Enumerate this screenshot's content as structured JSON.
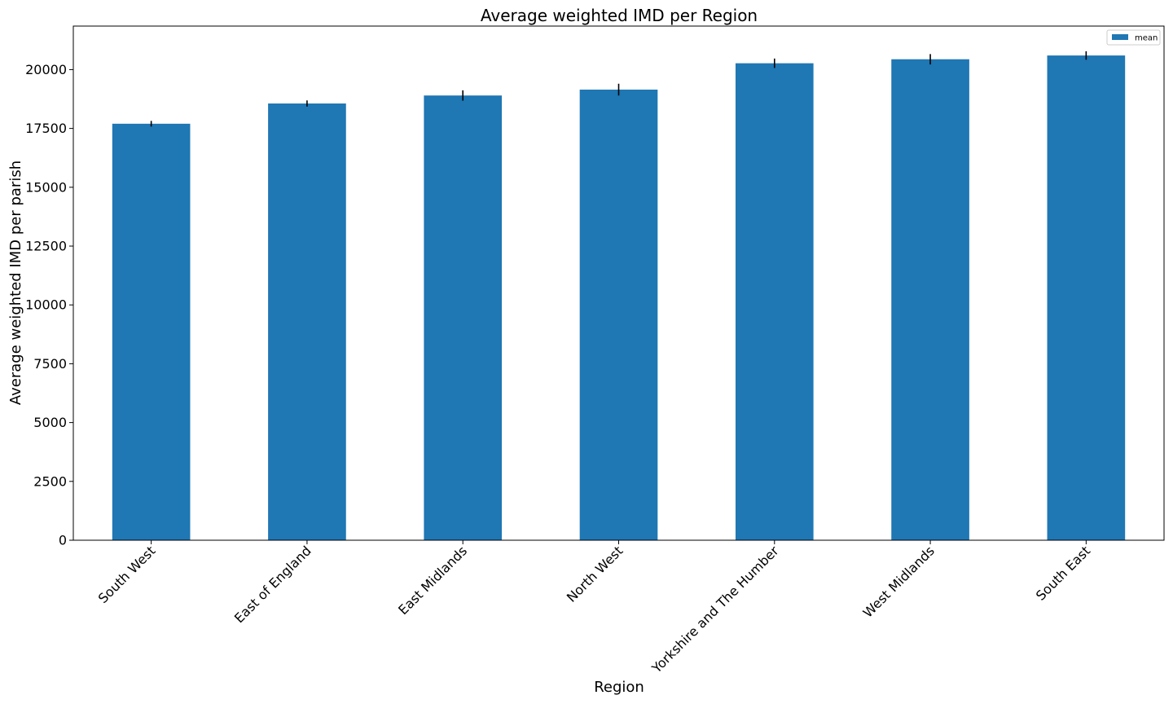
{
  "chart_data": {
    "type": "bar",
    "title": "Average weighted IMD per Region",
    "xlabel": "Region",
    "ylabel": "Average weighted IMD per parish",
    "categories": [
      "South West",
      "East of England",
      "East Midlands",
      "North West",
      "Yorkshire and The Humber",
      "West Midlands",
      "South East"
    ],
    "series": [
      {
        "name": "mean",
        "values": [
          17700,
          18560,
          18900,
          19150,
          20270,
          20440,
          20600
        ],
        "error": [
          120,
          130,
          220,
          250,
          200,
          220,
          180
        ],
        "color": "#1f77b4"
      }
    ],
    "ylim": [
      0,
      21850
    ],
    "yticks": [
      0,
      2500,
      5000,
      7500,
      10000,
      12500,
      15000,
      17500,
      20000
    ],
    "ytick_labels": [
      "0",
      "2500",
      "5000",
      "7500",
      "10000",
      "12500",
      "15000",
      "17500",
      "20000"
    ],
    "legend_position": "top-right",
    "grid": false,
    "error_color": "#000000"
  }
}
